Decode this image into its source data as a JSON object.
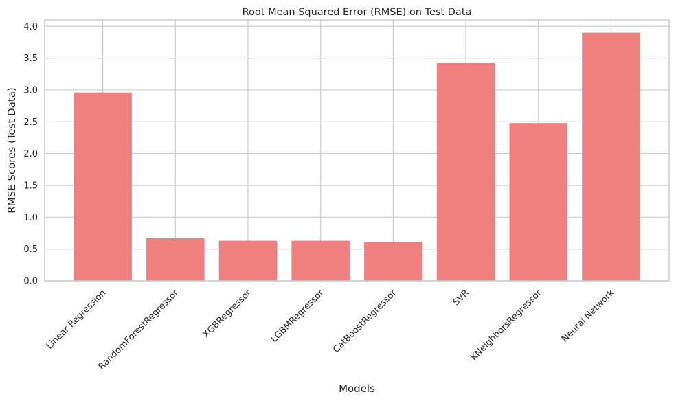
{
  "chart_data": {
    "type": "bar",
    "title": "Root Mean Squared Error (RMSE) on Test Data",
    "xlabel": "Models",
    "ylabel": "RMSE Scores (Test Data)",
    "categories": [
      "Linear Regression",
      "RandomForestRegressor",
      "XGBRegressor",
      "LGBMRegressor",
      "CatBoostRegressor",
      "SVR",
      "KNeighborsRegressor",
      "Neural Network"
    ],
    "values": [
      2.96,
      0.67,
      0.63,
      0.63,
      0.61,
      3.42,
      2.48,
      3.9
    ],
    "ylim": [
      0,
      4.1
    ],
    "yticks": [
      "0.0",
      "0.5",
      "1.0",
      "1.5",
      "2.0",
      "2.5",
      "3.0",
      "3.5",
      "4.0"
    ],
    "grid": true,
    "legend": "none",
    "colors": {
      "bar": "#f08080",
      "grid": "#cccccc",
      "axes": "#cccccc"
    }
  }
}
